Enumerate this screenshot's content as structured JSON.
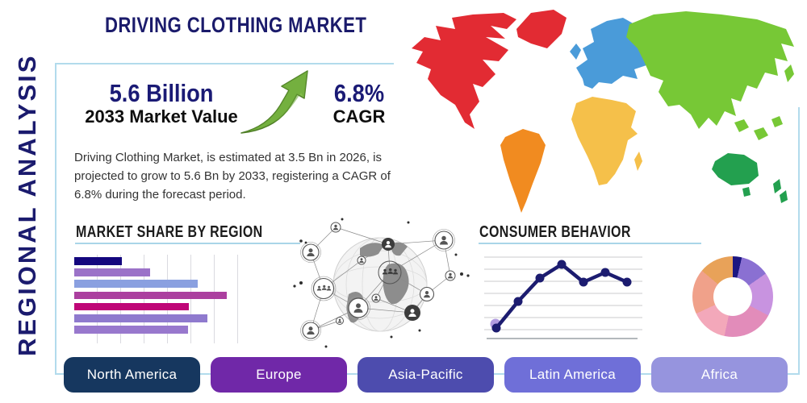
{
  "page": {
    "title": "DRIVING CLOTHING MARKET",
    "sidebar_label": "REGIONAL ANALYSIS"
  },
  "stats": {
    "market_value": "5.6 Billion",
    "market_value_label": "2033 Market Value",
    "cagr_value": "6.8%",
    "cagr_label": "CAGR",
    "description": "Driving Clothing Market, is estimated at 3.5 Bn in 2026, is projected to grow to 5.6 Bn by 2033, registering a CAGR of 6.8% during the forecast period."
  },
  "sections": {
    "market_share_title": "MARKET SHARE BY REGION",
    "consumer_behavior_title": "CONSUMER BEHAVIOR"
  },
  "regions": [
    {
      "label": "North America",
      "color": "#16375f"
    },
    {
      "label": "Europe",
      "color": "#7028a8"
    },
    {
      "label": "Asia-Pacific",
      "color": "#4d4cae"
    },
    {
      "label": "Latin America",
      "color": "#6f6fd8"
    },
    {
      "label": "Africa",
      "color": "#9694de"
    }
  ],
  "map_colors": {
    "north_america": "#e22b33",
    "greenland": "#e22b33",
    "south_america": "#f18b20",
    "europe": "#4a9bd9",
    "uk": "#4a9bd9",
    "africa": "#f5c04a",
    "madagascar": "#f5c04a",
    "asia": "#77c836",
    "se_asia": "#77c836",
    "japan": "#77c836",
    "australia": "#23a04f",
    "new_zealand": "#23a04f"
  },
  "accent": {
    "light_blue_line": "#a9d5e8",
    "navy": "#1a1a75"
  },
  "chart_data": [
    {
      "type": "bar",
      "title": "MARKET SHARE BY REGION",
      "orientation": "horizontal",
      "categories": [
        "",
        "",
        "",
        "",
        "",
        "",
        ""
      ],
      "values": [
        59,
        94,
        153,
        189,
        142,
        165,
        141
      ],
      "value_units": "relative-width-px (no axis labels shown)",
      "colors": [
        "#14077e",
        "#9b72c8",
        "#8aa0e0",
        "#ab3f9f",
        "#bf0677",
        "#8f7ace",
        "#9878cd"
      ],
      "grid": "vertical-light-gray"
    },
    {
      "type": "line",
      "title": "CONSUMER BEHAVIOR",
      "x": [
        1,
        2,
        3,
        4,
        5,
        6,
        7
      ],
      "values": [
        3,
        36,
        65,
        82,
        60,
        72,
        60
      ],
      "ylim": [
        0,
        100
      ],
      "line_color": "#1c1c70",
      "marker_color": "#1c1c70",
      "highlight_first_point_color": "#b19be0",
      "grid": "horizontal-light-gray",
      "axis_line_color": "#9aa0a6"
    },
    {
      "type": "pie",
      "subtype": "donut",
      "title": "",
      "segments": [
        {
          "color": "#1c1681",
          "degrees": 13
        },
        {
          "color": "#8a70d2",
          "degrees": 42
        },
        {
          "color": "#c893e0",
          "degrees": 63
        },
        {
          "color": "#e28cba",
          "degrees": 74
        },
        {
          "color": "#f3a8ba",
          "degrees": 53
        },
        {
          "color": "#f0a18a",
          "degrees": 65
        },
        {
          "color": "#e8a259",
          "degrees": 50
        }
      ]
    }
  ]
}
